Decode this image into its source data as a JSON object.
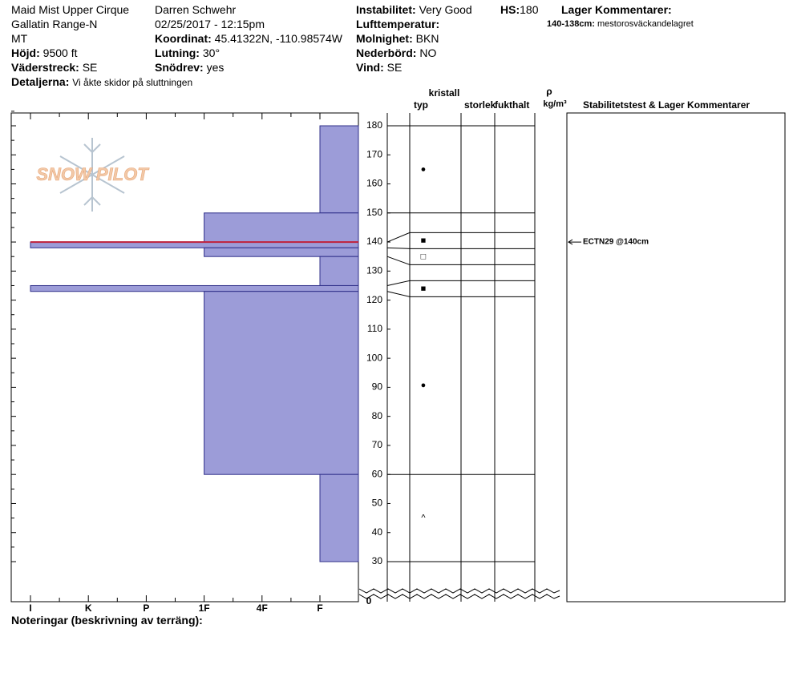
{
  "header": {
    "location": "Maid Mist Upper Cirque",
    "range": "Gallatin Range-N",
    "state": "MT",
    "elevation": {
      "label": "Höjd:",
      "value": "9500 ft"
    },
    "aspect": {
      "label": "Väderstreck:",
      "value": "SE"
    },
    "details": {
      "label": "Detaljerna:",
      "value": "Vi åkte skidor på sluttningen"
    },
    "observer": "Darren Schwehr",
    "datetime": "02/25/2017 - 12:15pm",
    "coordinates": {
      "label": "Koordinat:",
      "value": "45.41322N, -110.98574W"
    },
    "slope": {
      "label": "Lutning:",
      "value": "30°"
    },
    "wind_loading": {
      "label": "Snödrev:",
      "value": "yes"
    },
    "stability": {
      "label": "Instabilitet:",
      "value": "Very Good"
    },
    "hs": {
      "label": "HS:",
      "value": "180"
    },
    "air_temp": {
      "label": "Lufttemperatur:"
    },
    "sky": {
      "label": "Molnighet:",
      "value": "BKN"
    },
    "precip": {
      "label": "Nederbörd:",
      "value": "NO"
    },
    "wind": {
      "label": "Vind:",
      "value": "SE"
    },
    "layer_comments": {
      "label": "Lager Kommentarer:",
      "items": [
        {
          "label": "140-138cm:",
          "value": "mestorosväckandelagret"
        }
      ]
    }
  },
  "logo": "SNOW PILOT",
  "profile": {
    "ylim": [
      30,
      180
    ],
    "yticks": [
      30,
      40,
      50,
      60,
      70,
      80,
      90,
      100,
      110,
      120,
      130,
      140,
      150,
      160,
      170,
      180
    ],
    "break_tick": 0,
    "hardness_scale": [
      "I",
      "K",
      "P",
      "1F",
      "4F",
      "F"
    ],
    "columns": {
      "crystal": "kristall",
      "type": "typ",
      "size": "storlek",
      "moisture": "fukthalt",
      "rho": "ρ",
      "density_unit": "kg/m³",
      "tests": "Stabilitetstest & Lager Kommentarer"
    },
    "layers": [
      {
        "top": 180,
        "bottom": 150,
        "hardness": "F",
        "grain": "●"
      },
      {
        "top": 150,
        "bottom": 140,
        "hardness": "1F"
      },
      {
        "top": 140,
        "bottom": 138,
        "hardness": "I",
        "grain": "■",
        "concern": true
      },
      {
        "top": 138,
        "bottom": 135,
        "hardness": "1F",
        "grain": "□"
      },
      {
        "top": 135,
        "bottom": 125,
        "hardness": "F"
      },
      {
        "top": 125,
        "bottom": 123,
        "hardness": "I",
        "grain": "■"
      },
      {
        "top": 123,
        "bottom": 60,
        "hardness": "1F",
        "grain": "●"
      },
      {
        "top": 60,
        "bottom": 30,
        "hardness": "F",
        "grain": "^"
      }
    ],
    "tests": [
      {
        "depth": 140,
        "label": "ECTN29 @140cm"
      }
    ]
  },
  "notes_label": "Noteringar (beskrivning av terräng):"
}
